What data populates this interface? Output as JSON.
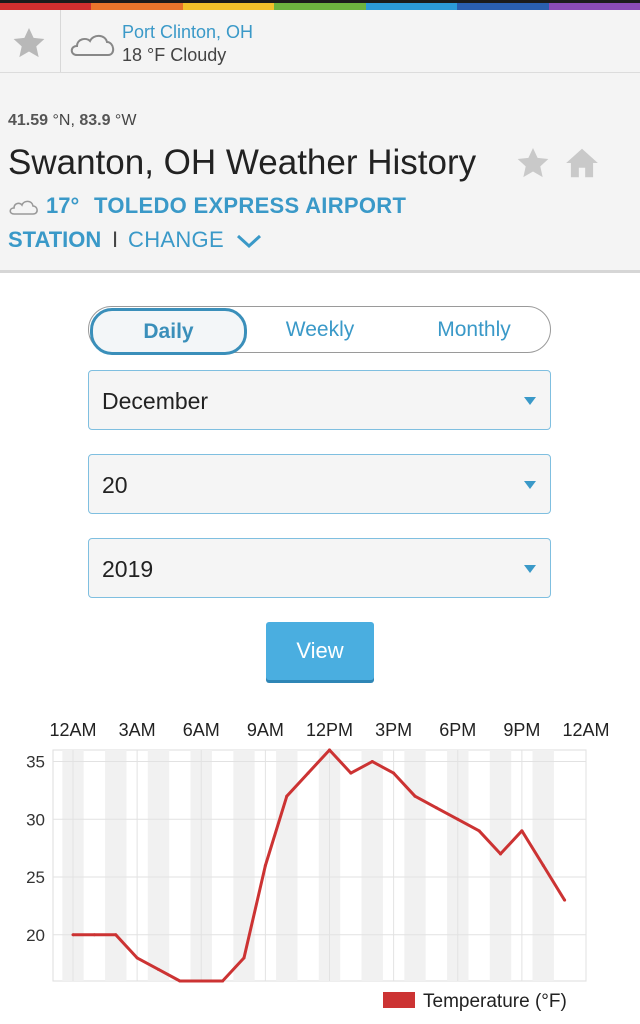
{
  "colors": {
    "accent": "#3a99c8",
    "rainbow": [
      "#d12f2f",
      "#e8742b",
      "#f2c12a",
      "#6db33f",
      "#2b9ad8",
      "#2a5fb0",
      "#8a4bb5"
    ],
    "series": "#cc3333"
  },
  "recent": {
    "star_icon": "star-icon",
    "cloud_icon": "cloud-icon",
    "city": "Port Clinton, OH",
    "conditions": "18 °F Cloudy"
  },
  "header": {
    "lat": "41.59",
    "lat_unit": " °N, ",
    "lon": "83.9",
    "lon_unit": " °W",
    "title": "Swanton, OH Weather History",
    "star_icon": "star-icon",
    "home_icon": "home-icon"
  },
  "station": {
    "cloud_icon": "cloud-icon",
    "temp": "17°",
    "name": "TOLEDO EXPRESS AIRPORT",
    "label": "STATION",
    "separator": "I",
    "change": "CHANGE",
    "chevron_icon": "chevron-down-icon"
  },
  "period_tabs": {
    "daily": "Daily",
    "weekly": "Weekly",
    "monthly": "Monthly",
    "selected": "Daily"
  },
  "selects": {
    "month": "December",
    "day": "20",
    "year": "2019"
  },
  "view_button": "View",
  "chart_data": {
    "type": "line",
    "x_tick_labels": [
      "12AM",
      "3AM",
      "6AM",
      "9AM",
      "12PM",
      "3PM",
      "6PM",
      "9PM",
      "12AM"
    ],
    "x_hours": [
      0,
      1,
      2,
      3,
      4,
      5,
      6,
      7,
      8,
      9,
      10,
      11,
      12,
      13,
      14,
      15,
      16,
      17,
      18,
      19,
      20,
      21,
      22,
      23
    ],
    "series": [
      {
        "name": "Temperature (°F)",
        "values": [
          20,
          20,
          20,
          18,
          17,
          16,
          16,
          16,
          18,
          26,
          32,
          34,
          36,
          34,
          35,
          34,
          32,
          31,
          30,
          29,
          27,
          29,
          26,
          23
        ]
      }
    ],
    "ylim": [
      16,
      36
    ],
    "y_ticks": [
      20,
      25,
      30,
      35
    ],
    "grid": true,
    "legend_position": "bottom-right"
  }
}
